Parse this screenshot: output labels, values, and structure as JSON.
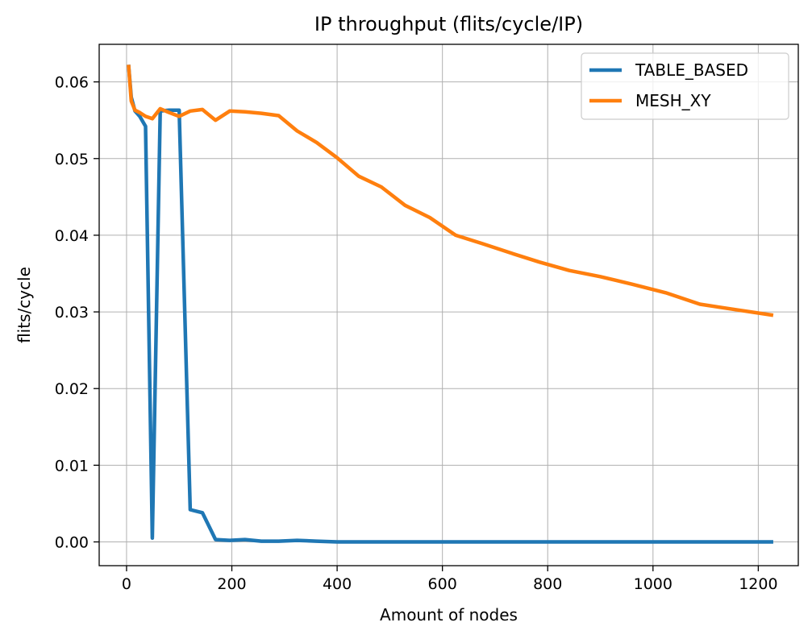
{
  "chart_data": {
    "type": "line",
    "title": "IP throughput (flits/cycle/IP)",
    "xlabel": "Amount of nodes",
    "ylabel": "flits/cycle",
    "xlim": [
      -52,
      1276
    ],
    "ylim": [
      -0.0031,
      0.0649
    ],
    "xticks": [
      0,
      200,
      400,
      600,
      800,
      1000,
      1200
    ],
    "xtick_labels": [
      "0",
      "200",
      "400",
      "600",
      "800",
      "1000",
      "1200"
    ],
    "yticks": [
      0.0,
      0.01,
      0.02,
      0.03,
      0.04,
      0.05,
      0.06
    ],
    "ytick_labels": [
      "0.00",
      "0.01",
      "0.02",
      "0.03",
      "0.04",
      "0.05",
      "0.06"
    ],
    "grid": true,
    "legend_position": "top-right",
    "series": [
      {
        "name": "TABLE_BASED",
        "color": "#1f77b4",
        "x": [
          4,
          9,
          16,
          25,
          36,
          49,
          64,
          81,
          100,
          121,
          144,
          169,
          196,
          225,
          256,
          289,
          324,
          361,
          400,
          441,
          484,
          529,
          576,
          625,
          676,
          729,
          784,
          841,
          900,
          961,
          1024,
          1089,
          1156,
          1225
        ],
        "y": [
          0.062,
          0.058,
          0.0562,
          0.0555,
          0.0542,
          0.0005,
          0.0562,
          0.0563,
          0.0563,
          0.0042,
          0.0038,
          0.0003,
          0.0002,
          0.0003,
          0.0001,
          0.0001,
          0.0002,
          0.0001,
          0.0,
          0.0,
          0.0,
          0.0,
          0.0,
          0.0,
          0.0,
          0.0,
          0.0,
          0.0,
          0.0,
          0.0,
          0.0,
          0.0,
          0.0,
          0.0
        ]
      },
      {
        "name": "MESH_XY",
        "color": "#ff7f0e",
        "x": [
          4,
          9,
          16,
          25,
          36,
          49,
          64,
          81,
          100,
          121,
          144,
          169,
          196,
          225,
          256,
          289,
          324,
          361,
          400,
          441,
          484,
          529,
          576,
          625,
          676,
          729,
          784,
          841,
          900,
          961,
          1024,
          1089,
          1156,
          1225
        ],
        "y": [
          0.062,
          0.0575,
          0.0563,
          0.056,
          0.0555,
          0.0552,
          0.0565,
          0.056,
          0.0555,
          0.0562,
          0.0564,
          0.055,
          0.0562,
          0.0561,
          0.0559,
          0.0556,
          0.0536,
          0.0521,
          0.0501,
          0.0477,
          0.0463,
          0.0439,
          0.0423,
          0.04,
          0.0389,
          0.0377,
          0.0365,
          0.0354,
          0.0346,
          0.0336,
          0.0325,
          0.031,
          0.0303,
          0.0296
        ]
      }
    ]
  }
}
